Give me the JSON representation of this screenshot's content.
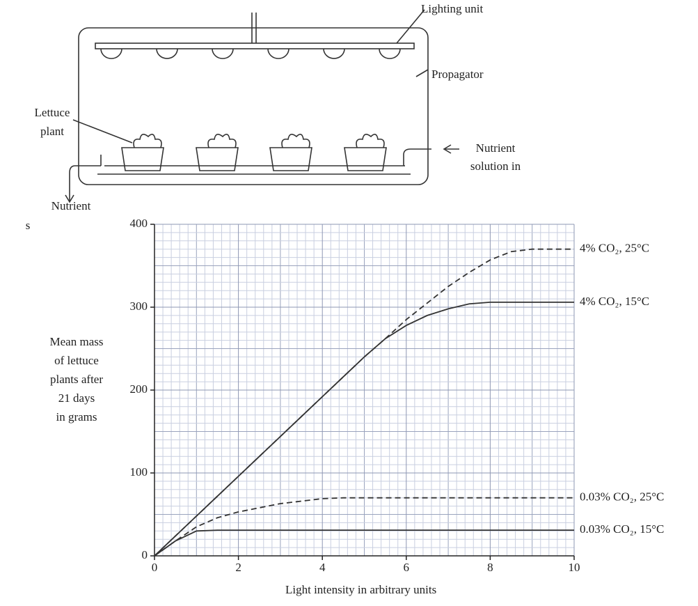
{
  "diagram": {
    "lighting_label": "Lighting unit",
    "propagator_label": "Propagator",
    "lettuce_label": [
      "Lettuce",
      "plant"
    ],
    "nutrient_in_label": [
      "Nutrient",
      "solution in"
    ],
    "nutrient_out_label": [
      "Nutrient",
      "s"
    ]
  },
  "chart_data": {
    "type": "line",
    "x_label": "Light intensity in arbitrary units",
    "y_label": [
      "Mean mass",
      "of lettuce",
      "plants after",
      "21 days",
      "in grams"
    ],
    "x": [
      0,
      0.5,
      1,
      1.5,
      2,
      2.5,
      3,
      3.5,
      4,
      4.5,
      5,
      5.5,
      6,
      6.5,
      7,
      7.5,
      8,
      8.5,
      9,
      9.5,
      10
    ],
    "series": [
      {
        "name": "4% CO₂, 25°C",
        "color": "#333333",
        "style": "dashed",
        "values": [
          0,
          24,
          48,
          72,
          96,
          120,
          144,
          168,
          192,
          216,
          240,
          262,
          285,
          305,
          325,
          342,
          357,
          367,
          370,
          370,
          370
        ]
      },
      {
        "name": "4% CO₂, 15°C",
        "color": "#333333",
        "style": "solid",
        "values": [
          0,
          24,
          48,
          72,
          96,
          120,
          144,
          168,
          192,
          216,
          240,
          262,
          278,
          290,
          298,
          304,
          306,
          306,
          306,
          306,
          306
        ]
      },
      {
        "name": "0.03% CO₂, 25°C",
        "color": "#333333",
        "style": "dashed",
        "values": [
          0,
          18,
          35,
          46,
          53,
          58,
          63,
          66,
          69,
          70,
          70,
          70,
          70,
          70,
          70,
          70,
          70,
          70,
          70,
          70,
          70
        ]
      },
      {
        "name": "0.03% CO₂, 15°C",
        "color": "#333333",
        "style": "solid",
        "values": [
          0,
          18,
          30,
          31,
          31,
          31,
          31,
          31,
          31,
          31,
          31,
          31,
          31,
          31,
          31,
          31,
          31,
          31,
          31,
          31,
          31
        ]
      }
    ],
    "xlim": [
      0,
      10
    ],
    "ylim": [
      0,
      400
    ],
    "xticks": [
      0,
      2,
      4,
      6,
      8,
      10
    ],
    "yticks": [
      0,
      100,
      200,
      300,
      400
    ],
    "grid": true
  }
}
